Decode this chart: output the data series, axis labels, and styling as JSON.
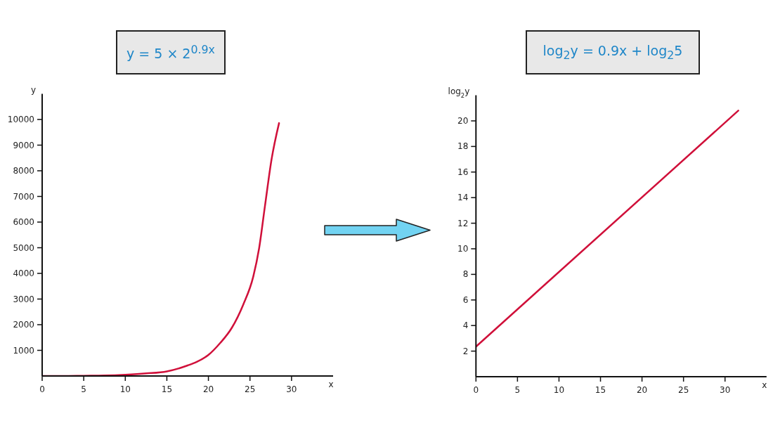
{
  "chart_data": [
    {
      "type": "line",
      "title": "y = 5 × 2$^{0.9x}$",
      "xlabel": "x",
      "ylabel": "y",
      "color": "#d0103a",
      "x": [
        0,
        2.5,
        5,
        7.5,
        10,
        12.5,
        15,
        17.5,
        18.6,
        20,
        21.4,
        22.8,
        24.2,
        25.4,
        26.1,
        26.8,
        27.6,
        28.5
      ],
      "values": [
        0,
        0,
        10,
        20,
        50,
        100,
        180,
        410,
        550,
        820,
        1280,
        1870,
        2790,
        3880,
        4980,
        6620,
        8450,
        9860
      ],
      "xlim": [
        0,
        35
      ],
      "xticks": [
        0,
        5,
        10,
        15,
        20,
        25,
        30
      ],
      "ylim": [
        0,
        11000
      ],
      "yticks": [
        1000,
        2000,
        3000,
        4000,
        5000,
        6000,
        7000,
        8000,
        9000,
        10000
      ]
    },
    {
      "type": "line",
      "title": "log$_{2}$y = 0.9x + log$_{2}$5",
      "xlabel": "x",
      "ylabel": "log$_{2}$y",
      "color": "#d0103a",
      "x": [
        0,
        31.6
      ],
      "values": [
        2.35,
        20.8
      ],
      "xlim": [
        0,
        35
      ],
      "xticks": [
        0,
        5,
        10,
        15,
        20,
        25,
        30
      ],
      "ylim": [
        0,
        22
      ],
      "yticks": [
        2,
        4,
        6,
        8,
        10,
        12,
        14,
        16,
        18,
        20
      ]
    }
  ]
}
